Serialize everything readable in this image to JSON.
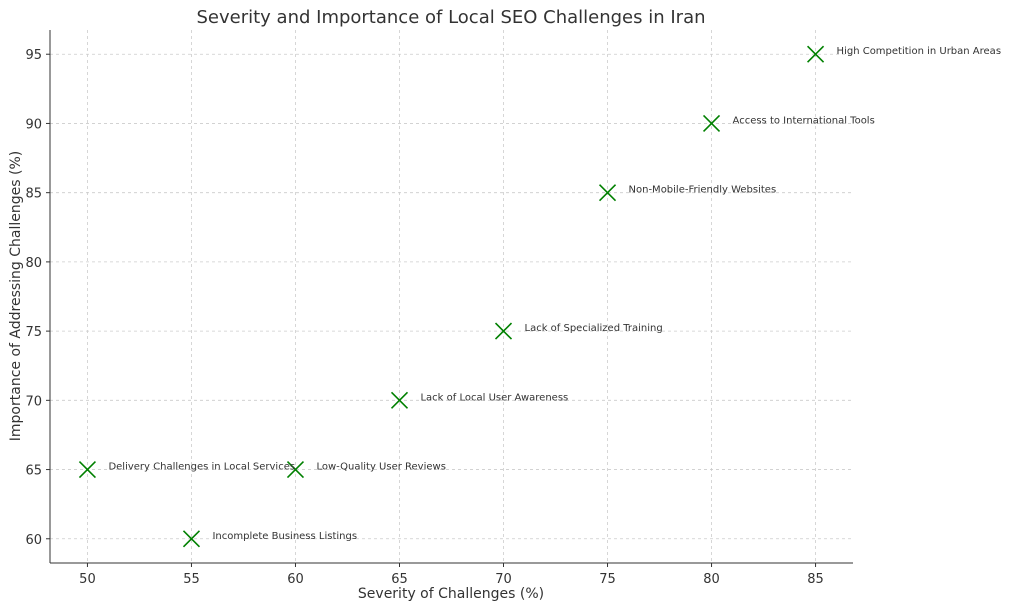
{
  "chart_data": {
    "type": "scatter",
    "title": "Severity and Importance of Local SEO Challenges in Iran",
    "xlabel": "Severity of Challenges (%)",
    "ylabel": "Importance of Addressing Challenges (%)",
    "xlim": [
      48.2,
      86.8
    ],
    "ylim": [
      58.25,
      96.75
    ],
    "xticks": [
      50,
      55,
      60,
      65,
      70,
      75,
      80,
      85
    ],
    "yticks": [
      60,
      65,
      70,
      75,
      80,
      85,
      90,
      95
    ],
    "grid": true,
    "marker": "x",
    "marker_color": "#008000",
    "points": [
      {
        "x": 85,
        "y": 95,
        "label": "High Competition in Urban Areas"
      },
      {
        "x": 80,
        "y": 90,
        "label": "Access to International Tools"
      },
      {
        "x": 75,
        "y": 85,
        "label": "Non-Mobile-Friendly Websites"
      },
      {
        "x": 70,
        "y": 75,
        "label": "Lack of Specialized Training"
      },
      {
        "x": 65,
        "y": 70,
        "label": "Lack of Local User Awareness"
      },
      {
        "x": 60,
        "y": 65,
        "label": "Low-Quality User Reviews"
      },
      {
        "x": 50,
        "y": 65,
        "label": "Delivery Challenges in Local Services"
      },
      {
        "x": 55,
        "y": 60,
        "label": "Incomplete Business Listings"
      }
    ]
  }
}
